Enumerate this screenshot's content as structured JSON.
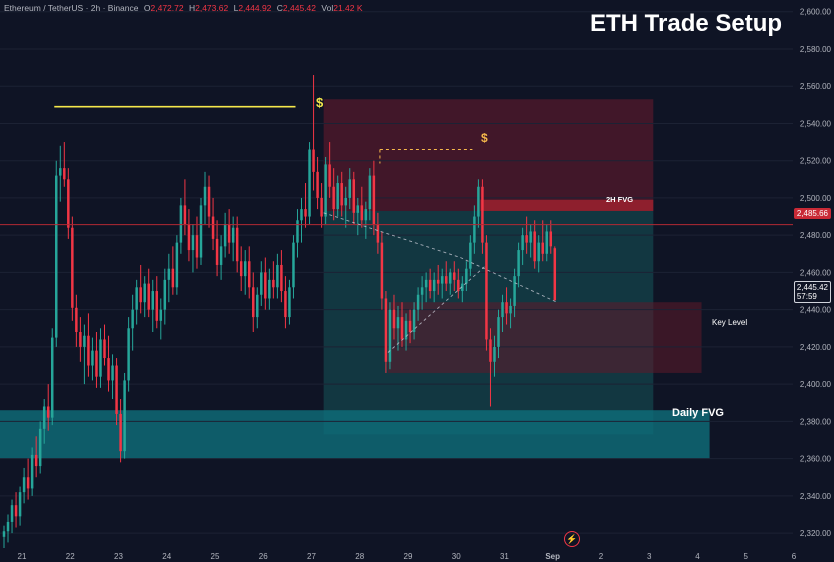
{
  "header": {
    "symbol": "Ethereum / TetherUS · 2h · Binance",
    "open_label": "O",
    "open": "2,472.72",
    "high_label": "H",
    "high": "2,473.62",
    "low_label": "L",
    "low": "2,444.92",
    "close_label": "C",
    "close": "2,445.42",
    "vol_label": "Vol",
    "vol": "21.42 K"
  },
  "title": "ETH Trade Setup",
  "annotations": {
    "fvg_2h": "2H FVG",
    "key_level": "Key Level",
    "daily_fvg": "Daily FVG",
    "liquidity_symbol": "$"
  },
  "price_tags": {
    "red_line": "2,485.66",
    "last_price": "2,445.42",
    "countdown": "57:59"
  },
  "icons": {
    "replay": "flash-icon"
  },
  "colors": {
    "background": "#0f1425",
    "bull": "#26a69a",
    "bear": "#f23645",
    "liquidity_line": "#f5e84b",
    "red_level": "#b22833",
    "daily_fvg": "#0e6e7a",
    "text": "#b2b5be"
  },
  "chart_data": {
    "type": "candlestick",
    "timeframe": "2h",
    "x_ticks": [
      "21",
      "22",
      "23",
      "24",
      "25",
      "26",
      "27",
      "28",
      "29",
      "30",
      "31",
      "Sep",
      "2",
      "3",
      "4",
      "5",
      "6"
    ],
    "y_ticks": [
      "2,320.00",
      "2,340.00",
      "2,360.00",
      "2,380.00",
      "2,400.00",
      "2,420.00",
      "2,440.00",
      "2,460.00",
      "2,480.00",
      "2,500.00",
      "2,520.00",
      "2,540.00",
      "2,560.00",
      "2,580.00",
      "2,600.00"
    ],
    "ylim": [
      2312,
      2602
    ],
    "x_start": "2024-08-21T00:00",
    "x_end": "2024-09-06T08:00",
    "red_line_price": 2485.66,
    "last_price": 2445.42,
    "zones": [
      {
        "name": "supply",
        "from": "2024-08-27T16:00",
        "to": "2024-09-03T12:00",
        "low": 2493,
        "high": 2553
      },
      {
        "name": "2H FVG",
        "from": "2024-08-30T22:00",
        "to": "2024-09-03T12:00",
        "low": 2493,
        "high": 2499
      },
      {
        "name": "projection",
        "from": "2024-08-27T16:00",
        "to": "2024-09-03T12:00",
        "low": 2373,
        "high": 2493
      },
      {
        "name": "Key Level",
        "from": "2024-08-29T00:00",
        "to": "2024-09-04T12:00",
        "low": 2406,
        "high": 2444
      },
      {
        "name": "Daily FVG",
        "from": "2024-08-21T00:00",
        "to": "2024-09-04T16:00",
        "low": 2360,
        "high": 2386
      }
    ],
    "liquidity_lines": [
      {
        "style": "solid",
        "from": "2024-08-22T02:00",
        "to": "2024-08-27T02:00",
        "price": 2549
      },
      {
        "style": "dashed",
        "from": "2024-08-28T20:00",
        "to": "2024-08-30T18:00",
        "price": 2526
      }
    ],
    "trend_lines": [
      {
        "from_t": "2024-08-27T16:00",
        "from_p": 2492,
        "to_t": "2024-08-30T12:00",
        "to_p": 2468
      },
      {
        "from_t": "2024-08-30T12:00",
        "from_p": 2468,
        "to_t": "2024-09-01T12:00",
        "to_p": 2444
      },
      {
        "from_t": "2024-08-29T00:00",
        "from_p": 2417,
        "to_t": "2024-08-31T00:00",
        "to_p": 2463
      }
    ],
    "candles": [
      [
        "2024-08-21T00:00",
        2318,
        2324,
        2312,
        2321
      ],
      [
        "2024-08-21T02:00",
        2321,
        2330,
        2315,
        2326
      ],
      [
        "2024-08-21T04:00",
        2326,
        2338,
        2320,
        2335
      ],
      [
        "2024-08-21T06:00",
        2335,
        2342,
        2323,
        2329
      ],
      [
        "2024-08-21T08:00",
        2329,
        2345,
        2324,
        2342
      ],
      [
        "2024-08-21T10:00",
        2342,
        2355,
        2336,
        2350
      ],
      [
        "2024-08-21T12:00",
        2350,
        2360,
        2338,
        2344
      ],
      [
        "2024-08-21T14:00",
        2344,
        2366,
        2340,
        2362
      ],
      [
        "2024-08-21T16:00",
        2362,
        2372,
        2350,
        2356
      ],
      [
        "2024-08-21T18:00",
        2356,
        2380,
        2352,
        2376
      ],
      [
        "2024-08-21T20:00",
        2376,
        2392,
        2368,
        2388
      ],
      [
        "2024-08-21T22:00",
        2388,
        2400,
        2375,
        2382
      ],
      [
        "2024-08-22T00:00",
        2382,
        2430,
        2378,
        2425
      ],
      [
        "2024-08-22T02:00",
        2425,
        2520,
        2420,
        2512
      ],
      [
        "2024-08-22T04:00",
        2512,
        2528,
        2498,
        2516
      ],
      [
        "2024-08-22T06:00",
        2516,
        2530,
        2506,
        2510
      ],
      [
        "2024-08-22T08:00",
        2510,
        2516,
        2478,
        2484
      ],
      [
        "2024-08-22T10:00",
        2484,
        2490,
        2434,
        2441
      ],
      [
        "2024-08-22T12:00",
        2441,
        2448,
        2420,
        2428
      ],
      [
        "2024-08-22T14:00",
        2428,
        2436,
        2412,
        2420
      ],
      [
        "2024-08-22T16:00",
        2420,
        2432,
        2400,
        2426
      ],
      [
        "2024-08-22T18:00",
        2426,
        2438,
        2404,
        2410
      ],
      [
        "2024-08-22T20:00",
        2410,
        2425,
        2402,
        2418
      ],
      [
        "2024-08-22T22:00",
        2418,
        2428,
        2398,
        2404
      ],
      [
        "2024-08-23T00:00",
        2404,
        2430,
        2398,
        2424
      ],
      [
        "2024-08-23T02:00",
        2424,
        2432,
        2410,
        2414
      ],
      [
        "2024-08-23T04:00",
        2414,
        2426,
        2396,
        2402
      ],
      [
        "2024-08-23T06:00",
        2402,
        2416,
        2392,
        2410
      ],
      [
        "2024-08-23T08:00",
        2410,
        2414,
        2378,
        2384
      ],
      [
        "2024-08-23T10:00",
        2384,
        2392,
        2358,
        2364
      ],
      [
        "2024-08-23T12:00",
        2364,
        2406,
        2360,
        2402
      ],
      [
        "2024-08-23T14:00",
        2402,
        2436,
        2396,
        2430
      ],
      [
        "2024-08-23T16:00",
        2430,
        2448,
        2418,
        2440
      ],
      [
        "2024-08-23T18:00",
        2440,
        2456,
        2432,
        2452
      ],
      [
        "2024-08-23T20:00",
        2452,
        2464,
        2438,
        2444
      ],
      [
        "2024-08-23T22:00",
        2444,
        2458,
        2436,
        2454
      ],
      [
        "2024-08-24T00:00",
        2454,
        2462,
        2436,
        2440
      ],
      [
        "2024-08-24T02:00",
        2440,
        2456,
        2428,
        2450
      ],
      [
        "2024-08-24T04:00",
        2450,
        2458,
        2430,
        2434
      ],
      [
        "2024-08-24T06:00",
        2434,
        2446,
        2424,
        2440
      ],
      [
        "2024-08-24T08:00",
        2440,
        2462,
        2432,
        2456
      ],
      [
        "2024-08-24T10:00",
        2456,
        2470,
        2444,
        2462
      ],
      [
        "2024-08-24T12:00",
        2462,
        2474,
        2448,
        2452
      ],
      [
        "2024-08-24T14:00",
        2452,
        2480,
        2448,
        2476
      ],
      [
        "2024-08-24T16:00",
        2476,
        2500,
        2470,
        2496
      ],
      [
        "2024-08-24T18:00",
        2496,
        2510,
        2480,
        2486
      ],
      [
        "2024-08-24T20:00",
        2486,
        2494,
        2466,
        2472
      ],
      [
        "2024-08-24T22:00",
        2472,
        2486,
        2460,
        2480
      ],
      [
        "2024-08-25T00:00",
        2480,
        2490,
        2462,
        2468
      ],
      [
        "2024-08-25T02:00",
        2468,
        2500,
        2464,
        2496
      ],
      [
        "2024-08-25T04:00",
        2496,
        2514,
        2486,
        2506
      ],
      [
        "2024-08-25T06:00",
        2506,
        2512,
        2484,
        2490
      ],
      [
        "2024-08-25T08:00",
        2490,
        2500,
        2472,
        2478
      ],
      [
        "2024-08-25T10:00",
        2478,
        2488,
        2458,
        2464
      ],
      [
        "2024-08-25T12:00",
        2464,
        2480,
        2456,
        2474
      ],
      [
        "2024-08-25T14:00",
        2474,
        2492,
        2468,
        2486
      ],
      [
        "2024-08-25T16:00",
        2486,
        2494,
        2470,
        2476
      ],
      [
        "2024-08-25T18:00",
        2476,
        2490,
        2466,
        2484
      ],
      [
        "2024-08-25T20:00",
        2484,
        2490,
        2460,
        2466
      ],
      [
        "2024-08-25T22:00",
        2466,
        2474,
        2450,
        2458
      ],
      [
        "2024-08-26T00:00",
        2458,
        2472,
        2448,
        2466
      ],
      [
        "2024-08-26T02:00",
        2466,
        2474,
        2446,
        2452
      ],
      [
        "2024-08-26T04:00",
        2452,
        2460,
        2428,
        2436
      ],
      [
        "2024-08-26T06:00",
        2436,
        2452,
        2430,
        2448
      ],
      [
        "2024-08-26T08:00",
        2448,
        2466,
        2442,
        2460
      ],
      [
        "2024-08-26T10:00",
        2460,
        2468,
        2440,
        2446
      ],
      [
        "2024-08-26T12:00",
        2446,
        2462,
        2440,
        2456
      ],
      [
        "2024-08-26T14:00",
        2456,
        2466,
        2446,
        2452
      ],
      [
        "2024-08-26T16:00",
        2452,
        2470,
        2446,
        2464
      ],
      [
        "2024-08-26T18:00",
        2464,
        2472,
        2444,
        2450
      ],
      [
        "2024-08-26T20:00",
        2450,
        2458,
        2430,
        2436
      ],
      [
        "2024-08-26T22:00",
        2436,
        2456,
        2432,
        2452
      ],
      [
        "2024-08-27T00:00",
        2452,
        2480,
        2446,
        2476
      ],
      [
        "2024-08-27T02:00",
        2476,
        2494,
        2468,
        2488
      ],
      [
        "2024-08-27T04:00",
        2488,
        2500,
        2476,
        2494
      ],
      [
        "2024-08-27T06:00",
        2494,
        2508,
        2484,
        2490
      ],
      [
        "2024-08-27T08:00",
        2490,
        2530,
        2486,
        2526
      ],
      [
        "2024-08-27T10:00",
        2526,
        2566,
        2504,
        2514
      ],
      [
        "2024-08-27T12:00",
        2514,
        2522,
        2494,
        2500
      ],
      [
        "2024-08-27T14:00",
        2500,
        2508,
        2484,
        2490
      ],
      [
        "2024-08-27T16:00",
        2490,
        2522,
        2486,
        2518
      ],
      [
        "2024-08-27T18:00",
        2518,
        2530,
        2500,
        2506
      ],
      [
        "2024-08-27T20:00",
        2506,
        2516,
        2488,
        2494
      ],
      [
        "2024-08-27T22:00",
        2494,
        2512,
        2490,
        2508
      ],
      [
        "2024-08-28T00:00",
        2508,
        2514,
        2490,
        2496
      ],
      [
        "2024-08-28T02:00",
        2496,
        2506,
        2484,
        2500
      ],
      [
        "2024-08-28T04:00",
        2500,
        2516,
        2494,
        2510
      ],
      [
        "2024-08-28T06:00",
        2510,
        2514,
        2486,
        2492
      ],
      [
        "2024-08-28T08:00",
        2492,
        2500,
        2480,
        2496
      ],
      [
        "2024-08-28T10:00",
        2496,
        2506,
        2484,
        2488
      ],
      [
        "2024-08-28T12:00",
        2488,
        2498,
        2478,
        2494
      ],
      [
        "2024-08-28T14:00",
        2494,
        2516,
        2488,
        2512
      ],
      [
        "2024-08-28T16:00",
        2512,
        2520,
        2480,
        2486
      ],
      [
        "2024-08-28T18:00",
        2486,
        2492,
        2470,
        2476
      ],
      [
        "2024-08-28T20:00",
        2476,
        2482,
        2440,
        2446
      ],
      [
        "2024-08-28T22:00",
        2446,
        2450,
        2406,
        2412
      ],
      [
        "2024-08-29T00:00",
        2412,
        2444,
        2408,
        2440
      ],
      [
        "2024-08-29T02:00",
        2440,
        2448,
        2424,
        2430
      ],
      [
        "2024-08-29T04:00",
        2430,
        2442,
        2418,
        2436
      ],
      [
        "2024-08-29T06:00",
        2436,
        2444,
        2420,
        2424
      ],
      [
        "2024-08-29T08:00",
        2424,
        2438,
        2418,
        2434
      ],
      [
        "2024-08-29T10:00",
        2434,
        2440,
        2422,
        2428
      ],
      [
        "2024-08-29T12:00",
        2428,
        2444,
        2424,
        2440
      ],
      [
        "2024-08-29T14:00",
        2440,
        2452,
        2434,
        2448
      ],
      [
        "2024-08-29T16:00",
        2448,
        2458,
        2440,
        2452
      ],
      [
        "2024-08-29T18:00",
        2452,
        2460,
        2444,
        2456
      ],
      [
        "2024-08-29T20:00",
        2456,
        2462,
        2446,
        2450
      ],
      [
        "2024-08-29T22:00",
        2450,
        2460,
        2444,
        2456
      ],
      [
        "2024-08-30T00:00",
        2456,
        2464,
        2448,
        2454
      ],
      [
        "2024-08-30T02:00",
        2454,
        2462,
        2446,
        2458
      ],
      [
        "2024-08-30T04:00",
        2458,
        2466,
        2450,
        2454
      ],
      [
        "2024-08-30T06:00",
        2454,
        2462,
        2448,
        2460
      ],
      [
        "2024-08-30T08:00",
        2460,
        2466,
        2450,
        2456
      ],
      [
        "2024-08-30T10:00",
        2456,
        2462,
        2446,
        2450
      ],
      [
        "2024-08-30T12:00",
        2450,
        2458,
        2444,
        2454
      ],
      [
        "2024-08-30T14:00",
        2454,
        2466,
        2450,
        2462
      ],
      [
        "2024-08-30T16:00",
        2462,
        2480,
        2458,
        2476
      ],
      [
        "2024-08-30T18:00",
        2476,
        2496,
        2470,
        2490
      ],
      [
        "2024-08-30T20:00",
        2490,
        2510,
        2484,
        2506
      ],
      [
        "2024-08-30T22:00",
        2506,
        2510,
        2470,
        2476
      ],
      [
        "2024-08-31T00:00",
        2476,
        2480,
        2418,
        2424
      ],
      [
        "2024-08-31T02:00",
        2424,
        2430,
        2388,
        2412
      ],
      [
        "2024-08-31T04:00",
        2412,
        2426,
        2404,
        2420
      ],
      [
        "2024-08-31T06:00",
        2420,
        2440,
        2414,
        2436
      ],
      [
        "2024-08-31T08:00",
        2436,
        2448,
        2428,
        2444
      ],
      [
        "2024-08-31T10:00",
        2444,
        2452,
        2432,
        2438
      ],
      [
        "2024-08-31T12:00",
        2438,
        2446,
        2430,
        2442
      ],
      [
        "2024-08-31T14:00",
        2442,
        2462,
        2436,
        2458
      ],
      [
        "2024-08-31T16:00",
        2458,
        2476,
        2452,
        2472
      ],
      [
        "2024-08-31T18:00",
        2472,
        2484,
        2464,
        2480
      ],
      [
        "2024-08-31T20:00",
        2480,
        2490,
        2470,
        2476
      ],
      [
        "2024-08-31T22:00",
        2476,
        2486,
        2468,
        2482
      ],
      [
        "2024-09-01T00:00",
        2482,
        2488,
        2462,
        2466
      ],
      [
        "2024-09-01T02:00",
        2466,
        2480,
        2460,
        2476
      ],
      [
        "2024-09-01T04:00",
        2476,
        2488,
        2466,
        2470
      ],
      [
        "2024-09-01T06:00",
        2470,
        2486,
        2466,
        2482
      ],
      [
        "2024-09-01T08:00",
        2482,
        2488,
        2470,
        2474
      ],
      [
        "2024-09-01T10:00",
        2473,
        2474,
        2445,
        2445
      ]
    ]
  }
}
